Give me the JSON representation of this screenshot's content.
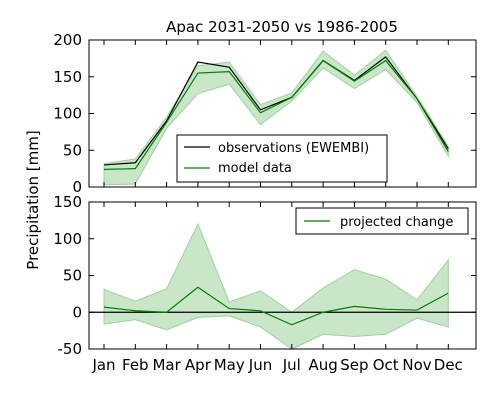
{
  "colors": {
    "observations": "#000000",
    "model": "#008000",
    "band": "#c9e6c9",
    "band_edge": "#9fd09f"
  },
  "chart_data": [
    {
      "type": "line",
      "title": "Apac 2031-2050 vs 1986-2005",
      "ylabel": "Precipitation [mm]",
      "categories": [
        "Jan",
        "Feb",
        "Mar",
        "Apr",
        "May",
        "Jun",
        "Jul",
        "Aug",
        "Sep",
        "Oct",
        "Nov",
        "Dec"
      ],
      "ylim": [
        0,
        200
      ],
      "yticks": [
        0,
        50,
        100,
        150,
        200
      ],
      "legend_position": "lower-center",
      "series": [
        {
          "name": "observations (EWEMBI)",
          "values": [
            30,
            33,
            90,
            170,
            163,
            105,
            122,
            172,
            145,
            177,
            120,
            52
          ]
        },
        {
          "name": "model data",
          "values": [
            24,
            25,
            88,
            155,
            157,
            101,
            122,
            172,
            144,
            172,
            120,
            48
          ]
        }
      ],
      "band": {
        "upper": [
          32,
          38,
          95,
          165,
          170,
          112,
          128,
          185,
          152,
          186,
          123,
          55
        ],
        "lower": [
          3,
          4,
          80,
          127,
          140,
          85,
          117,
          162,
          134,
          160,
          115,
          42
        ]
      }
    },
    {
      "type": "line",
      "categories": [
        "Jan",
        "Feb",
        "Mar",
        "Apr",
        "May",
        "Jun",
        "Jul",
        "Aug",
        "Sep",
        "Oct",
        "Nov",
        "Dec"
      ],
      "ylim": [
        -50,
        150
      ],
      "yticks": [
        -50,
        0,
        50,
        100,
        150
      ],
      "zero_line": true,
      "legend_position": "top-right",
      "series": [
        {
          "name": "projected change",
          "values": [
            7,
            2,
            0,
            34,
            5,
            2,
            -17,
            0,
            8,
            4,
            3,
            26
          ]
        }
      ],
      "band": {
        "upper": [
          31,
          15,
          32,
          120,
          14,
          29,
          0,
          33,
          58,
          45,
          17,
          71
        ],
        "lower": [
          -16,
          -10,
          -24,
          -7,
          -5,
          -20,
          -50,
          -30,
          -33,
          -30,
          -8,
          -20
        ]
      }
    }
  ]
}
